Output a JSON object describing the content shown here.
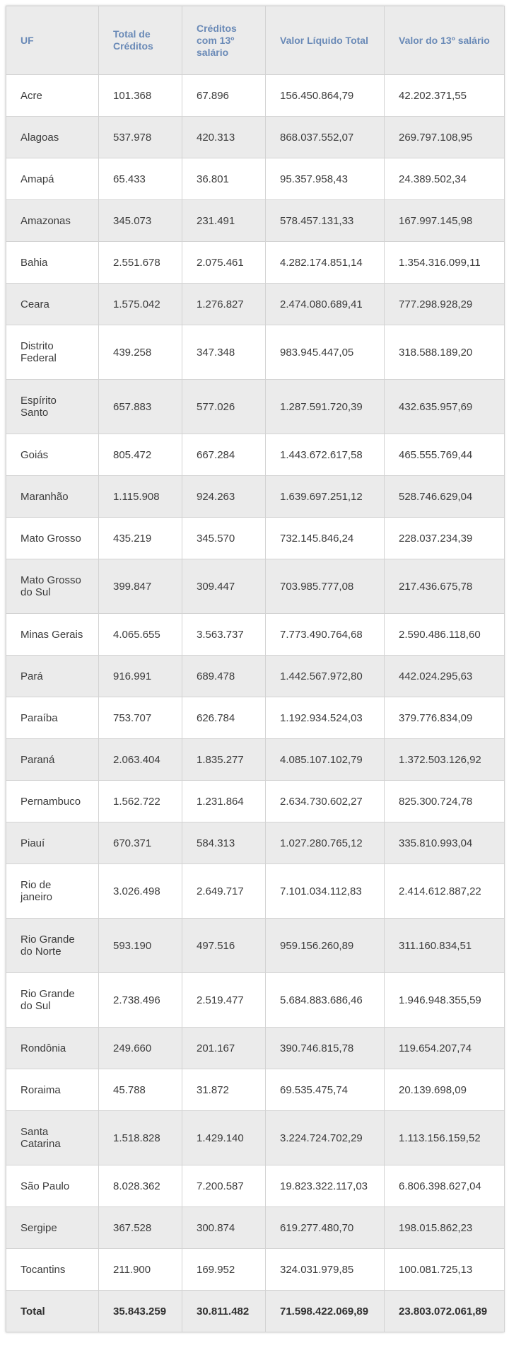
{
  "table": {
    "headers": [
      "UF",
      "Total de Créditos",
      "Créditos com 13º salário",
      "Valor Líquido Total",
      "Valor do 13º salário"
    ],
    "rows": [
      [
        "Acre",
        "101.368",
        "67.896",
        "156.450.864,79",
        "42.202.371,55"
      ],
      [
        "Alagoas",
        "537.978",
        "420.313",
        "868.037.552,07",
        "269.797.108,95"
      ],
      [
        "Amapá",
        "65.433",
        "36.801",
        "95.357.958,43",
        "24.389.502,34"
      ],
      [
        "Amazonas",
        "345.073",
        "231.491",
        "578.457.131,33",
        "167.997.145,98"
      ],
      [
        "Bahia",
        "2.551.678",
        "2.075.461",
        "4.282.174.851,14",
        "1.354.316.099,11"
      ],
      [
        "Ceara",
        "1.575.042",
        "1.276.827",
        "2.474.080.689,41",
        "777.298.928,29"
      ],
      [
        "Distrito Federal",
        "439.258",
        "347.348",
        "983.945.447,05",
        "318.588.189,20"
      ],
      [
        "Espírito Santo",
        "657.883",
        "577.026",
        "1.287.591.720,39",
        "432.635.957,69"
      ],
      [
        "Goiás",
        "805.472",
        "667.284",
        "1.443.672.617,58",
        "465.555.769,44"
      ],
      [
        "Maranhão",
        "1.115.908",
        "924.263",
        "1.639.697.251,12",
        "528.746.629,04"
      ],
      [
        "Mato Grosso",
        "435.219",
        "345.570",
        "732.145.846,24",
        "228.037.234,39"
      ],
      [
        "Mato Grosso do Sul",
        "399.847",
        "309.447",
        "703.985.777,08",
        "217.436.675,78"
      ],
      [
        "Minas Gerais",
        "4.065.655",
        "3.563.737",
        "7.773.490.764,68",
        "2.590.486.118,60"
      ],
      [
        "Pará",
        "916.991",
        "689.478",
        "1.442.567.972,80",
        "442.024.295,63"
      ],
      [
        "Paraíba",
        "753.707",
        "626.784",
        "1.192.934.524,03",
        "379.776.834,09"
      ],
      [
        "Paraná",
        "2.063.404",
        "1.835.277",
        "4.085.107.102,79",
        "1.372.503.126,92"
      ],
      [
        "Pernambuco",
        "1.562.722",
        "1.231.864",
        "2.634.730.602,27",
        "825.300.724,78"
      ],
      [
        "Piauí",
        "670.371",
        "584.313",
        "1.027.280.765,12",
        "335.810.993,04"
      ],
      [
        "Rio de janeiro",
        "3.026.498",
        "2.649.717",
        "7.101.034.112,83",
        "2.414.612.887,22"
      ],
      [
        "Rio Grande do Norte",
        "593.190",
        "497.516",
        "959.156.260,89",
        "311.160.834,51"
      ],
      [
        "Rio Grande do Sul",
        "2.738.496",
        "2.519.477",
        "5.684.883.686,46",
        "1.946.948.355,59"
      ],
      [
        "Rondônia",
        "249.660",
        "201.167",
        "390.746.815,78",
        "119.654.207,74"
      ],
      [
        "Roraima",
        "45.788",
        "31.872",
        "69.535.475,74",
        "20.139.698,09"
      ],
      [
        "Santa Catarina",
        "1.518.828",
        "1.429.140",
        "3.224.724.702,29",
        "1.113.156.159,52"
      ],
      [
        "São Paulo",
        "8.028.362",
        "7.200.587",
        "19.823.322.117,03",
        "6.806.398.627,04"
      ],
      [
        "Sergipe",
        "367.528",
        "300.874",
        "619.277.480,70",
        "198.015.862,23"
      ],
      [
        "Tocantins",
        "211.900",
        "169.952",
        "324.031.979,85",
        "100.081.725,13"
      ]
    ],
    "total": [
      "Total",
      "35.843.259",
      "30.811.482",
      "71.598.422.069,89",
      "23.803.072.061,89"
    ]
  },
  "colors": {
    "header_text": "#6a8ab7",
    "stripe": "#ebebeb",
    "border": "#d3d3d3"
  }
}
